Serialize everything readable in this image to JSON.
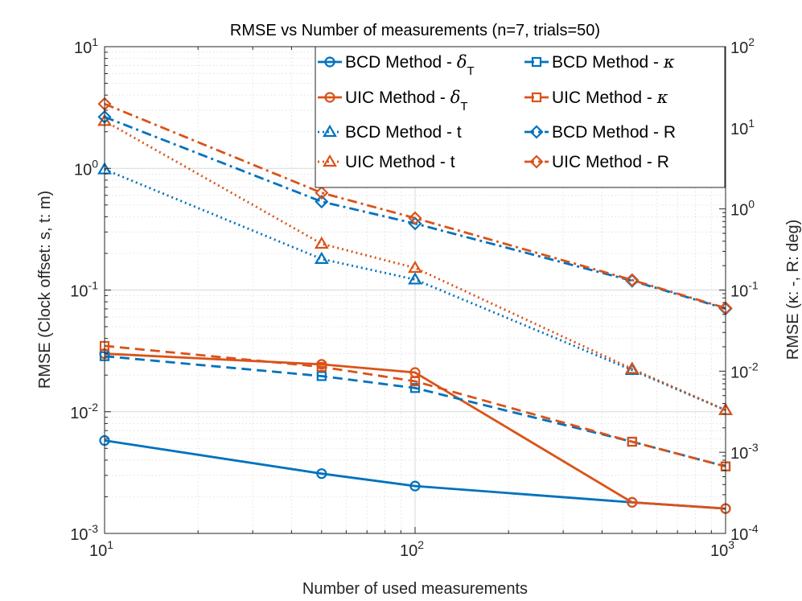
{
  "chart_data": {
    "type": "line",
    "title": "RMSE vs Number of measurements (n=7, trials=50)",
    "xlabel": "Number of used measurements",
    "ylabel_left": "RMSE (Clock offset: s,  t: m)",
    "ylabel_right": "RMSE (κ: -,  R: deg)",
    "xscale": "log",
    "yscale": "log",
    "xlim": [
      10,
      1000
    ],
    "ylim_left": [
      0.001,
      10
    ],
    "ylim_right": [
      0.0001,
      100
    ],
    "grid": true,
    "legend_location": "top-right",
    "x_ticks": [
      {
        "base": "10",
        "exp": "1",
        "value": 10
      },
      {
        "base": "10",
        "exp": "2",
        "value": 100
      },
      {
        "base": "10",
        "exp": "3",
        "value": 1000
      }
    ],
    "y_left_ticks": [
      {
        "base": "10",
        "exp": "-3",
        "value": 0.001
      },
      {
        "base": "10",
        "exp": "-2",
        "value": 0.01
      },
      {
        "base": "10",
        "exp": "-1",
        "value": 0.1
      },
      {
        "base": "10",
        "exp": "0",
        "value": 1
      },
      {
        "base": "10",
        "exp": "1",
        "value": 10
      }
    ],
    "y_right_ticks": [
      {
        "base": "10",
        "exp": "-4",
        "value": 0.0001
      },
      {
        "base": "10",
        "exp": "-3",
        "value": 0.001
      },
      {
        "base": "10",
        "exp": "-2",
        "value": 0.01
      },
      {
        "base": "10",
        "exp": "-1",
        "value": 0.1
      },
      {
        "base": "10",
        "exp": "0",
        "value": 1
      },
      {
        "base": "10",
        "exp": "1",
        "value": 10
      },
      {
        "base": "10",
        "exp": "2",
        "value": 100
      }
    ],
    "x": [
      10,
      50,
      100,
      500,
      1000
    ],
    "series": [
      {
        "name": "BCD Method - δ_T",
        "label_prefix": "BCD Method - ",
        "label_symbol": "δ",
        "label_sub": "T",
        "axis": "left",
        "color": "#0072BD",
        "dash": "solid",
        "marker": "circle",
        "values": [
          0.0058,
          0.0031,
          0.00245,
          0.0018,
          0.0016
        ]
      },
      {
        "name": "UIC Method - δ_T",
        "label_prefix": "UIC Method - ",
        "label_symbol": "δ",
        "label_sub": "T",
        "axis": "left",
        "color": "#D95319",
        "dash": "solid",
        "marker": "circle",
        "values": [
          0.03,
          0.0245,
          0.021,
          0.0018,
          0.0016
        ]
      },
      {
        "name": "BCD Method - t",
        "label_prefix": "BCD Method - t",
        "label_symbol": "",
        "label_sub": "",
        "axis": "left",
        "color": "#0072BD",
        "dash": "dotted",
        "marker": "triangle",
        "values": [
          0.98,
          0.18,
          0.122,
          0.022,
          0.0103
        ]
      },
      {
        "name": "UIC Method - t",
        "label_prefix": "UIC Method - t",
        "label_symbol": "",
        "label_sub": "",
        "axis": "left",
        "color": "#D95319",
        "dash": "dotted",
        "marker": "triangle",
        "values": [
          2.45,
          0.24,
          0.152,
          0.0225,
          0.0103
        ]
      },
      {
        "name": "BCD Method - κ",
        "label_prefix": "BCD Method - ",
        "label_symbol": "κ",
        "label_sub": "",
        "axis": "right",
        "color": "#0072BD",
        "dash": "dashed",
        "marker": "square",
        "values": [
          0.0153,
          0.0087,
          0.0062,
          0.00135,
          0.00067
        ]
      },
      {
        "name": "UIC Method - κ",
        "label_prefix": "UIC Method - ",
        "label_symbol": "κ",
        "label_sub": "",
        "axis": "right",
        "color": "#D95319",
        "dash": "dashed",
        "marker": "square",
        "values": [
          0.0205,
          0.0113,
          0.0075,
          0.00135,
          0.00067
        ]
      },
      {
        "name": "BCD Method - R",
        "label_prefix": "BCD Method - R",
        "label_symbol": "",
        "label_sub": "",
        "axis": "right",
        "color": "#0072BD",
        "dash": "dashdot",
        "marker": "diamond",
        "values": [
          13.6,
          1.23,
          0.66,
          0.13,
          0.059
        ]
      },
      {
        "name": "UIC Method - R",
        "label_prefix": "UIC Method - R",
        "label_symbol": "",
        "label_sub": "",
        "axis": "right",
        "color": "#D95319",
        "dash": "dashdot",
        "marker": "diamond",
        "values": [
          19.7,
          1.58,
          0.77,
          0.133,
          0.06
        ]
      }
    ]
  }
}
